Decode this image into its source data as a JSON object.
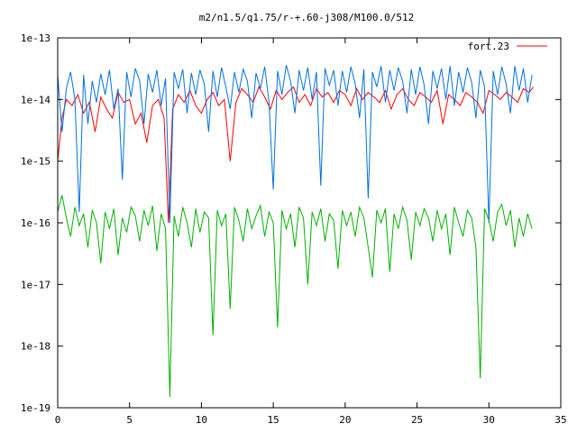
{
  "chart_data": {
    "type": "line",
    "title": "m2/n1.5/q1.75/r-+.60-j308/M100.0/512",
    "xlabel": "",
    "ylabel": "",
    "xlim": [
      0,
      35
    ],
    "ylim": [
      1e-19,
      1e-13
    ],
    "yscale": "log",
    "x_ticks": [
      0,
      5,
      10,
      15,
      20,
      25,
      30,
      35
    ],
    "x_tick_labels": [
      "0",
      "5",
      "10",
      "15",
      "20",
      "25",
      "30",
      "35"
    ],
    "y_ticks": [
      1e-13,
      1e-14,
      1e-15,
      1e-16,
      1e-17,
      1e-18,
      1e-19
    ],
    "y_tick_labels": [
      "1e-13",
      "1e-14",
      "1e-15",
      "1e-16",
      "1e-17",
      "1e-18",
      "1e-19"
    ],
    "grid": false,
    "legend_position": "top-right",
    "series": [
      {
        "name": "fort.23",
        "color": "#ff0000",
        "x": [
          0,
          0.3,
          0.6,
          1.0,
          1.4,
          1.8,
          2.2,
          2.6,
          3.0,
          3.4,
          3.8,
          4.2,
          4.6,
          5.0,
          5.4,
          5.8,
          6.2,
          6.6,
          7.0,
          7.4,
          7.7,
          8.0,
          8.4,
          8.8,
          9.2,
          9.6,
          10.0,
          10.4,
          10.8,
          11.2,
          11.6,
          12.0,
          12.4,
          12.8,
          13.2,
          13.6,
          14.0,
          14.4,
          14.8,
          15.2,
          15.6,
          16.0,
          16.4,
          16.8,
          17.2,
          17.6,
          18.0,
          18.4,
          18.8,
          19.2,
          19.6,
          20.0,
          20.4,
          20.8,
          21.2,
          21.6,
          22.0,
          22.4,
          22.8,
          23.2,
          23.6,
          24.0,
          24.4,
          24.8,
          25.2,
          25.6,
          26.0,
          26.4,
          26.8,
          27.2,
          27.6,
          28.0,
          28.4,
          28.8,
          29.2,
          29.6,
          30.0,
          30.4,
          30.8,
          31.2,
          31.6,
          32.0,
          32.4,
          32.8,
          33.1
        ],
        "values": [
          1e-15,
          5e-15,
          1e-14,
          8e-15,
          1.2e-14,
          6e-15,
          9e-15,
          3e-15,
          1.1e-14,
          7e-15,
          5e-15,
          1.3e-14,
          9e-15,
          1e-14,
          4e-15,
          6e-15,
          2e-15,
          8e-15,
          1e-14,
          5e-15,
          1e-16,
          7e-15,
          1.2e-14,
          9e-15,
          1.4e-14,
          8e-15,
          6e-15,
          1e-14,
          1.3e-14,
          8e-15,
          1e-14,
          1e-15,
          9e-15,
          1.5e-14,
          1.2e-14,
          9e-15,
          1.6e-14,
          1.1e-14,
          7e-15,
          1.4e-14,
          1e-14,
          1.3e-14,
          1.6e-14,
          9e-15,
          1.2e-14,
          8e-15,
          1.5e-14,
          1.1e-14,
          1.3e-14,
          9e-15,
          1.4e-14,
          1.2e-14,
          8e-15,
          1.5e-14,
          1e-14,
          1.3e-14,
          1.1e-14,
          9e-15,
          1.4e-14,
          7e-15,
          1.2e-14,
          1.5e-14,
          1e-14,
          8e-15,
          1.3e-14,
          1.1e-14,
          9e-15,
          1.4e-14,
          4e-15,
          1.2e-14,
          1e-14,
          8e-15,
          1.3e-14,
          1.1e-14,
          9e-15,
          6e-15,
          1.4e-14,
          1.2e-14,
          1e-14,
          1.3e-14,
          1.1e-14,
          9e-15,
          1.5e-14,
          1.3e-14,
          1.6e-14
        ]
      },
      {
        "name": "",
        "color": "#0070e0",
        "x": [
          0,
          0.3,
          0.6,
          0.9,
          1.2,
          1.5,
          1.8,
          2.1,
          2.4,
          2.7,
          3.0,
          3.3,
          3.6,
          3.9,
          4.2,
          4.5,
          4.8,
          5.1,
          5.4,
          5.7,
          6.0,
          6.3,
          6.6,
          6.9,
          7.2,
          7.5,
          7.8,
          8.1,
          8.4,
          8.7,
          9.0,
          9.3,
          9.6,
          9.9,
          10.2,
          10.5,
          10.8,
          11.1,
          11.4,
          11.7,
          12.0,
          12.3,
          12.6,
          12.9,
          13.2,
          13.5,
          13.8,
          14.1,
          14.4,
          14.7,
          15.0,
          15.3,
          15.6,
          15.9,
          16.2,
          16.5,
          16.8,
          17.1,
          17.4,
          17.7,
          18.0,
          18.3,
          18.6,
          18.9,
          19.2,
          19.5,
          19.8,
          20.1,
          20.4,
          20.7,
          21.0,
          21.3,
          21.6,
          21.9,
          22.2,
          22.5,
          22.8,
          23.1,
          23.4,
          23.7,
          24.0,
          24.3,
          24.6,
          24.9,
          25.2,
          25.5,
          25.8,
          26.1,
          26.4,
          26.7,
          27.0,
          27.3,
          27.6,
          27.9,
          28.2,
          28.5,
          28.8,
          29.1,
          29.4,
          29.7,
          30.0,
          30.3,
          30.6,
          30.9,
          31.2,
          31.5,
          31.8,
          32.1,
          32.4,
          32.7,
          33.0
        ],
        "values": [
          2.5e-14,
          3e-15,
          1.5e-14,
          2.8e-14,
          1e-14,
          1.5e-16,
          2.5e-14,
          4e-15,
          2e-14,
          9e-15,
          2.6e-14,
          1.2e-14,
          3e-14,
          7e-15,
          1.5e-14,
          5e-16,
          2.8e-14,
          1.1e-14,
          3.2e-14,
          2e-14,
          4e-15,
          2.6e-14,
          1.3e-14,
          3e-14,
          8e-15,
          2.2e-14,
          1e-16,
          2.8e-14,
          1.5e-14,
          3.1e-14,
          6e-15,
          2.7e-14,
          1.2e-14,
          3e-14,
          1.8e-14,
          3e-15,
          2.9e-14,
          1.1e-14,
          3.3e-14,
          1.6e-14,
          7e-15,
          2.8e-14,
          1.3e-14,
          3.1e-14,
          2e-14,
          5e-15,
          2.7e-14,
          1.5e-14,
          3.4e-14,
          9e-15,
          3.5e-16,
          2.9e-14,
          1.2e-14,
          3.6e-14,
          2e-14,
          6e-15,
          3e-14,
          1.4e-14,
          3.3e-14,
          1e-14,
          2.8e-14,
          4e-16,
          3.2e-14,
          1.7e-14,
          3e-14,
          8e-15,
          2.9e-14,
          1.3e-14,
          3.4e-14,
          1.8e-14,
          5e-15,
          3.1e-14,
          2.5e-16,
          2.8e-14,
          1.6e-14,
          3.5e-14,
          9e-15,
          3e-14,
          1.4e-14,
          3.3e-14,
          2e-14,
          6e-15,
          3.1e-14,
          1.2e-14,
          3.4e-14,
          1.7e-14,
          4e-15,
          2.9e-14,
          1.5e-14,
          3.2e-14,
          1e-14,
          3.5e-14,
          8e-15,
          2.8e-14,
          1.3e-14,
          3.3e-14,
          1.9e-14,
          5e-15,
          3e-14,
          1.6e-14,
          1e-16,
          2.9e-14,
          1.2e-14,
          3.4e-14,
          1.8e-14,
          6e-15,
          3.5e-14,
          1.4e-14,
          3.2e-14,
          9e-15,
          2.5e-14
        ]
      },
      {
        "name": "",
        "color": "#00b000",
        "x": [
          0,
          0.3,
          0.6,
          0.9,
          1.2,
          1.5,
          1.8,
          2.1,
          2.4,
          2.7,
          3.0,
          3.3,
          3.6,
          3.9,
          4.2,
          4.5,
          4.8,
          5.1,
          5.4,
          5.7,
          6.0,
          6.3,
          6.6,
          6.9,
          7.2,
          7.5,
          7.8,
          8.1,
          8.4,
          8.7,
          9.0,
          9.3,
          9.6,
          9.9,
          10.2,
          10.5,
          10.8,
          11.1,
          11.4,
          11.7,
          12.0,
          12.3,
          12.6,
          12.9,
          13.2,
          13.5,
          13.8,
          14.1,
          14.4,
          14.7,
          15.0,
          15.3,
          15.6,
          15.9,
          16.2,
          16.5,
          16.8,
          17.1,
          17.4,
          17.7,
          18.0,
          18.3,
          18.6,
          18.9,
          19.2,
          19.5,
          19.8,
          20.1,
          20.4,
          20.7,
          21.0,
          21.3,
          21.6,
          21.9,
          22.2,
          22.5,
          22.8,
          23.1,
          23.4,
          23.7,
          24.0,
          24.3,
          24.6,
          24.9,
          25.2,
          25.5,
          25.8,
          26.1,
          26.4,
          26.7,
          27.0,
          27.3,
          27.6,
          27.9,
          28.2,
          28.5,
          28.8,
          29.1,
          29.4,
          29.7,
          30.0,
          30.3,
          30.6,
          30.9,
          31.2,
          31.5,
          31.8,
          32.1,
          32.4,
          32.7,
          33.0
        ],
        "values": [
          1.5e-16,
          2.8e-16,
          1.2e-16,
          6e-17,
          1.8e-16,
          9e-17,
          1.4e-16,
          4e-17,
          1.6e-16,
          1e-16,
          2.2e-17,
          1.5e-16,
          8e-17,
          1.7e-16,
          3e-17,
          1.2e-16,
          7e-17,
          1.8e-16,
          1.3e-16,
          5e-17,
          1.6e-16,
          9e-17,
          1.9e-16,
          3.5e-17,
          1.4e-16,
          8e-17,
          1.5e-19,
          1.3e-16,
          6e-17,
          1.8e-16,
          1e-16,
          4e-17,
          1.7e-16,
          7e-17,
          1.5e-16,
          1.2e-16,
          1.5e-18,
          1.6e-16,
          9e-17,
          1.4e-16,
          4e-18,
          1.8e-16,
          1.1e-16,
          5e-17,
          1.7e-16,
          8e-17,
          1.3e-16,
          1.9e-16,
          6e-17,
          1.5e-16,
          1e-16,
          2e-18,
          1.6e-16,
          8e-17,
          1.4e-16,
          4e-17,
          1.8e-16,
          1.2e-16,
          1e-17,
          1.5e-16,
          9e-17,
          1.7e-16,
          5e-17,
          1.4e-16,
          1.1e-16,
          1.8e-17,
          1.6e-16,
          9e-17,
          1.5e-16,
          6e-17,
          1.8e-16,
          1.2e-16,
          4e-17,
          1.3e-17,
          1.6e-16,
          1e-16,
          1.7e-16,
          1.6e-17,
          1.4e-16,
          8e-17,
          1.8e-16,
          1.1e-16,
          2.5e-17,
          1.5e-16,
          9e-17,
          1.7e-16,
          1.2e-16,
          5e-17,
          1.6e-16,
          8e-17,
          1.4e-16,
          3e-17,
          1.8e-16,
          1e-16,
          6e-17,
          1.6e-16,
          1.2e-16,
          4e-17,
          3e-19,
          1.7e-16,
          1.1e-16,
          5e-17,
          1.5e-16,
          2e-16,
          9e-17,
          1.6e-16,
          4e-17,
          1.2e-16,
          6e-17,
          1.4e-16,
          8e-17
        ]
      }
    ]
  }
}
